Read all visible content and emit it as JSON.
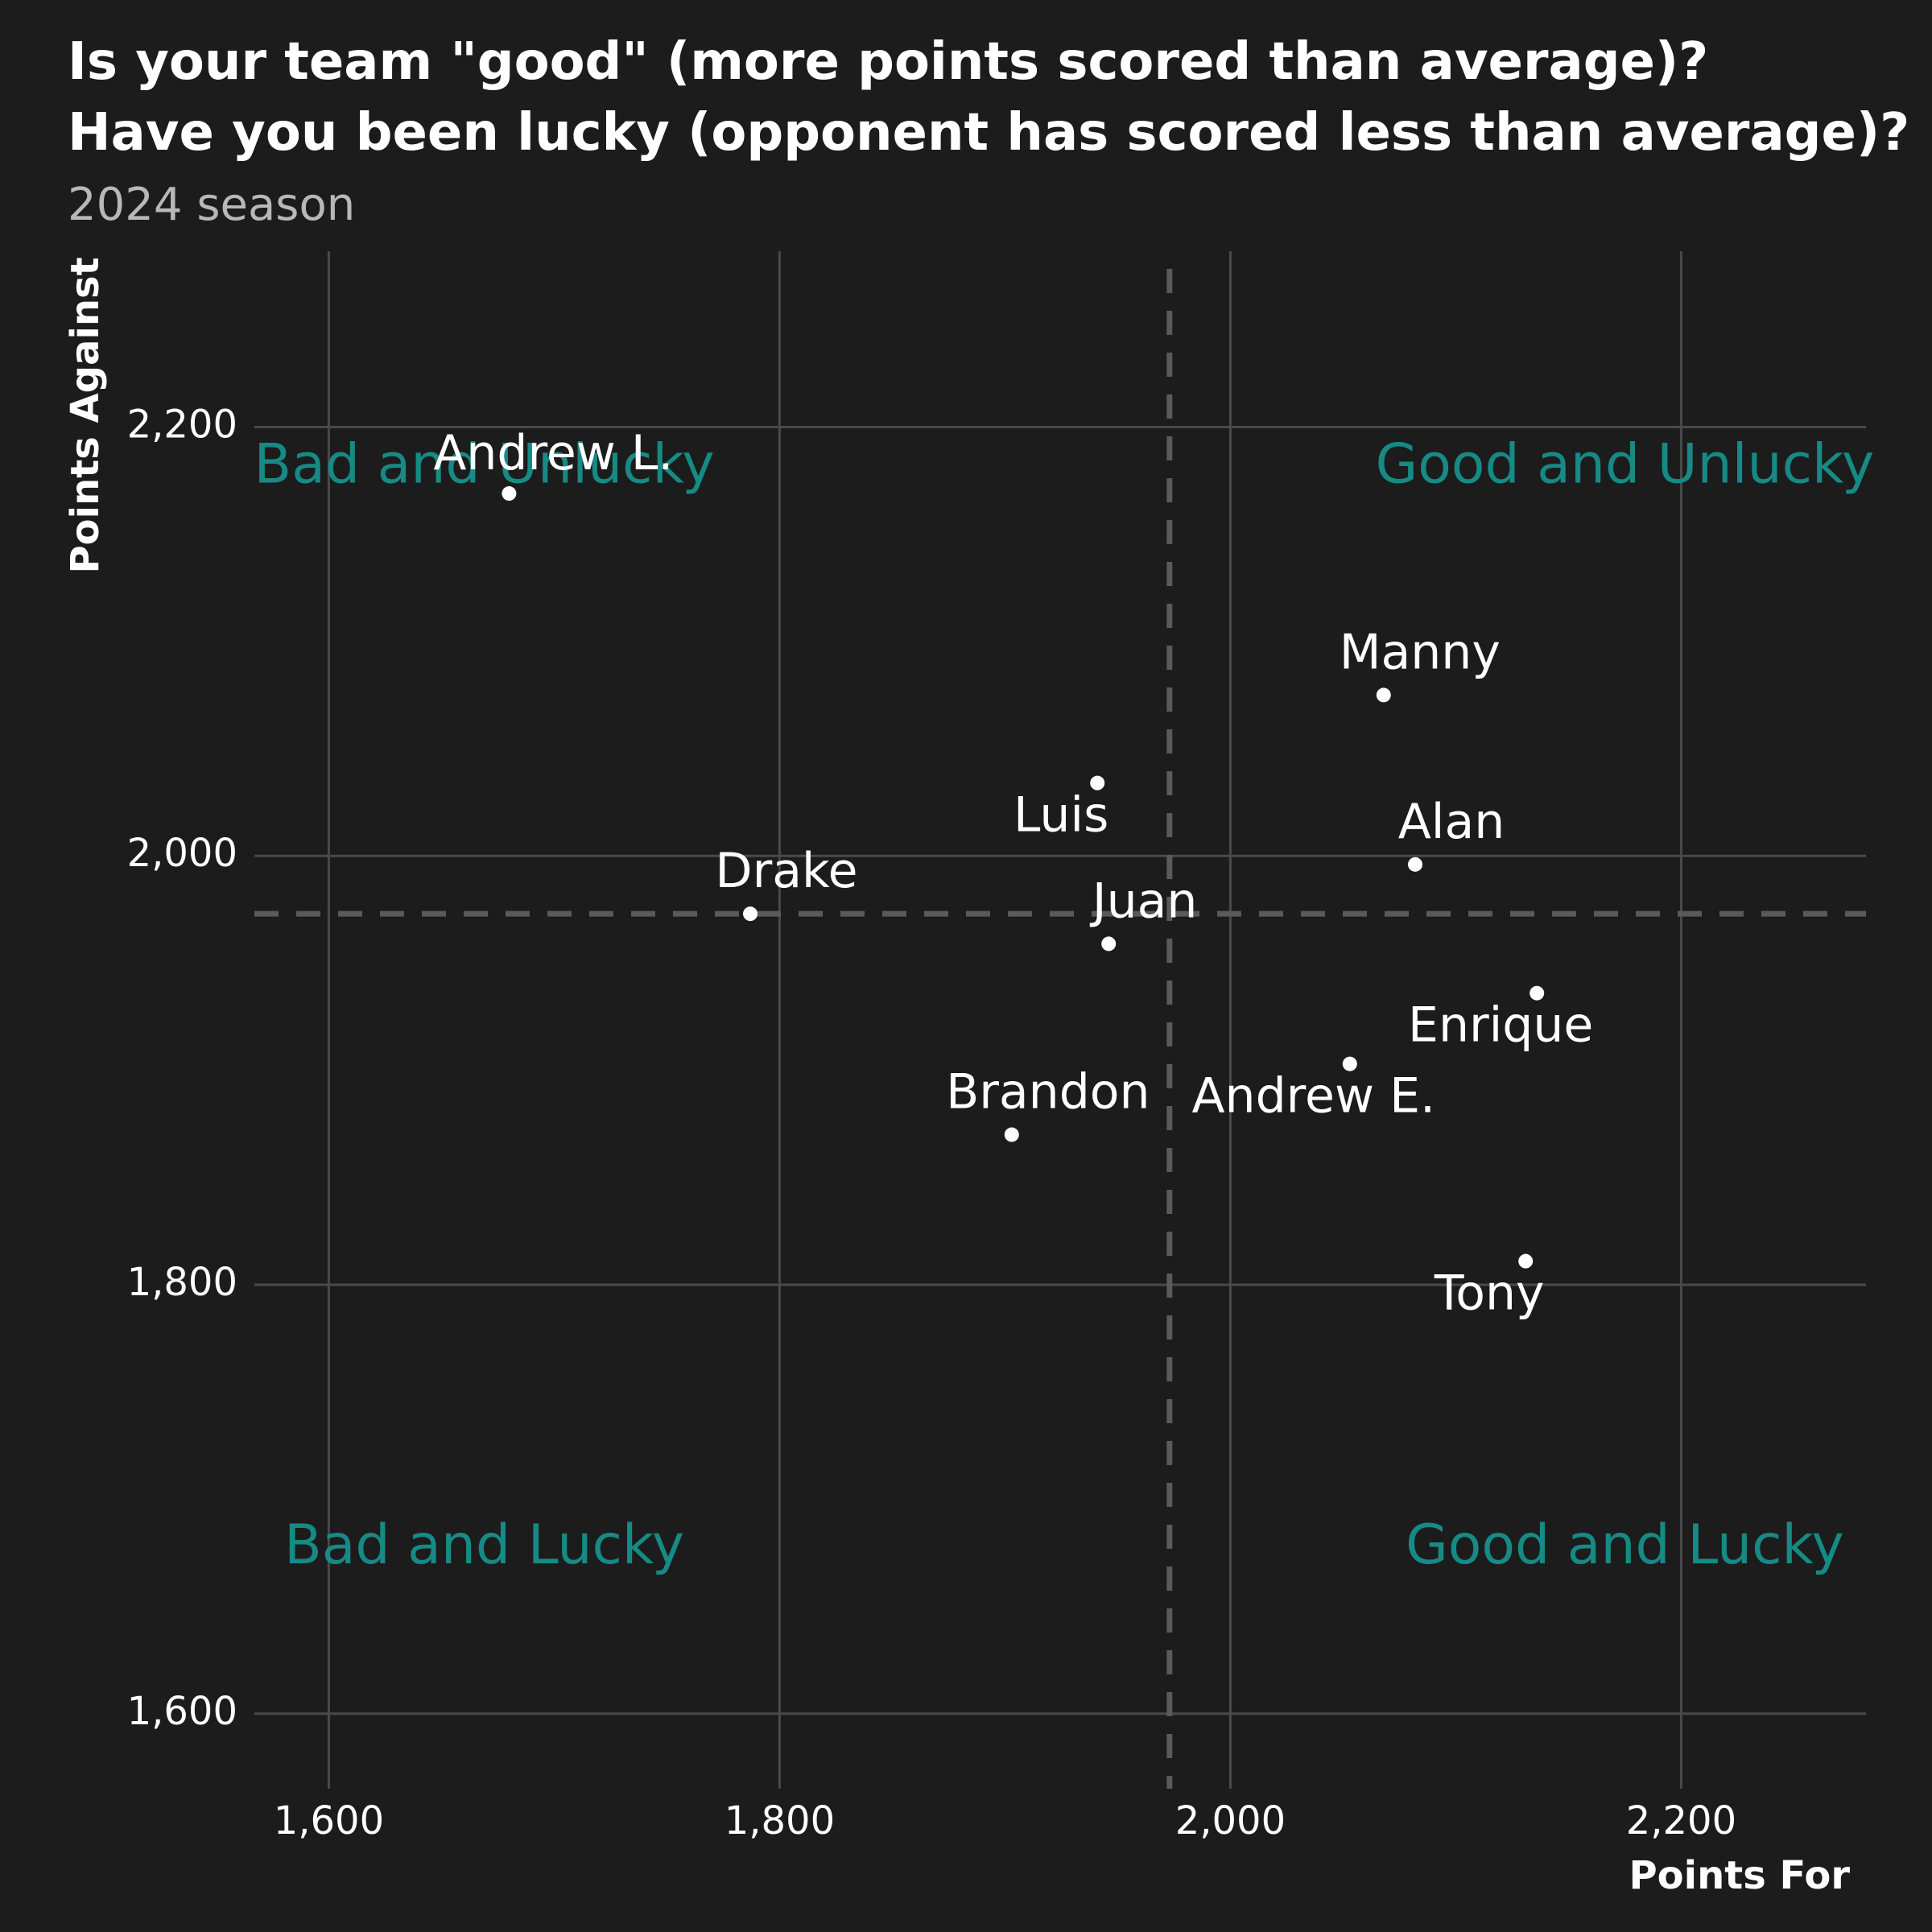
{
  "chart_data": {
    "type": "scatter",
    "title_lines": [
      "Is your team \"good\" (more points scored than average)?",
      "Have you been lucky (opponent has scored less than average)?"
    ],
    "subtitle": "2024 season",
    "xlabel": "Points For",
    "ylabel": "Points Against",
    "xlim": [
      1567,
      2282
    ],
    "ylim": [
      1565,
      2282
    ],
    "x_ticks": [
      1600,
      1800,
      2000,
      2200
    ],
    "y_ticks": [
      1600,
      1800,
      2000,
      2200
    ],
    "x_tick_labels": [
      "1,600",
      "1,800",
      "2,000",
      "2,200"
    ],
    "y_tick_labels": [
      "1,600",
      "1,800",
      "2,000",
      "2,200"
    ],
    "grid": true,
    "avg_x": 1973,
    "avg_y": 1973,
    "points": [
      {
        "name": "Andrew L.",
        "x": 1680,
        "y": 2169
      },
      {
        "name": "Manny",
        "x": 2068,
        "y": 2075
      },
      {
        "name": "Luis",
        "x": 1941,
        "y": 2034
      },
      {
        "name": "Alan",
        "x": 2082,
        "y": 1996
      },
      {
        "name": "Drake",
        "x": 1787,
        "y": 1973
      },
      {
        "name": "Juan",
        "x": 1946,
        "y": 1959
      },
      {
        "name": "Enrique",
        "x": 2136,
        "y": 1936
      },
      {
        "name": "Andrew E.",
        "x": 2053,
        "y": 1903
      },
      {
        "name": "Brandon",
        "x": 1903,
        "y": 1870
      },
      {
        "name": "Tony",
        "x": 2131,
        "y": 1811
      }
    ],
    "quadrant_labels": [
      {
        "text": "Bad and Unlucky",
        "x": 1669,
        "y": 2181
      },
      {
        "text": "Good and Unlucky",
        "x": 2175,
        "y": 2181
      },
      {
        "text": "Bad and Lucky",
        "x": 1669,
        "y": 1677
      },
      {
        "text": "Good and Lucky",
        "x": 2175,
        "y": 1677
      }
    ],
    "colors": {
      "background": "#1c1c1c",
      "grid": "#4a4a4a",
      "average_line": "#5a5a5a",
      "point": "#ffffff",
      "quadrant_label": "#168a85",
      "text": "#ffffff",
      "subtitle": "#b8b8b8"
    }
  }
}
